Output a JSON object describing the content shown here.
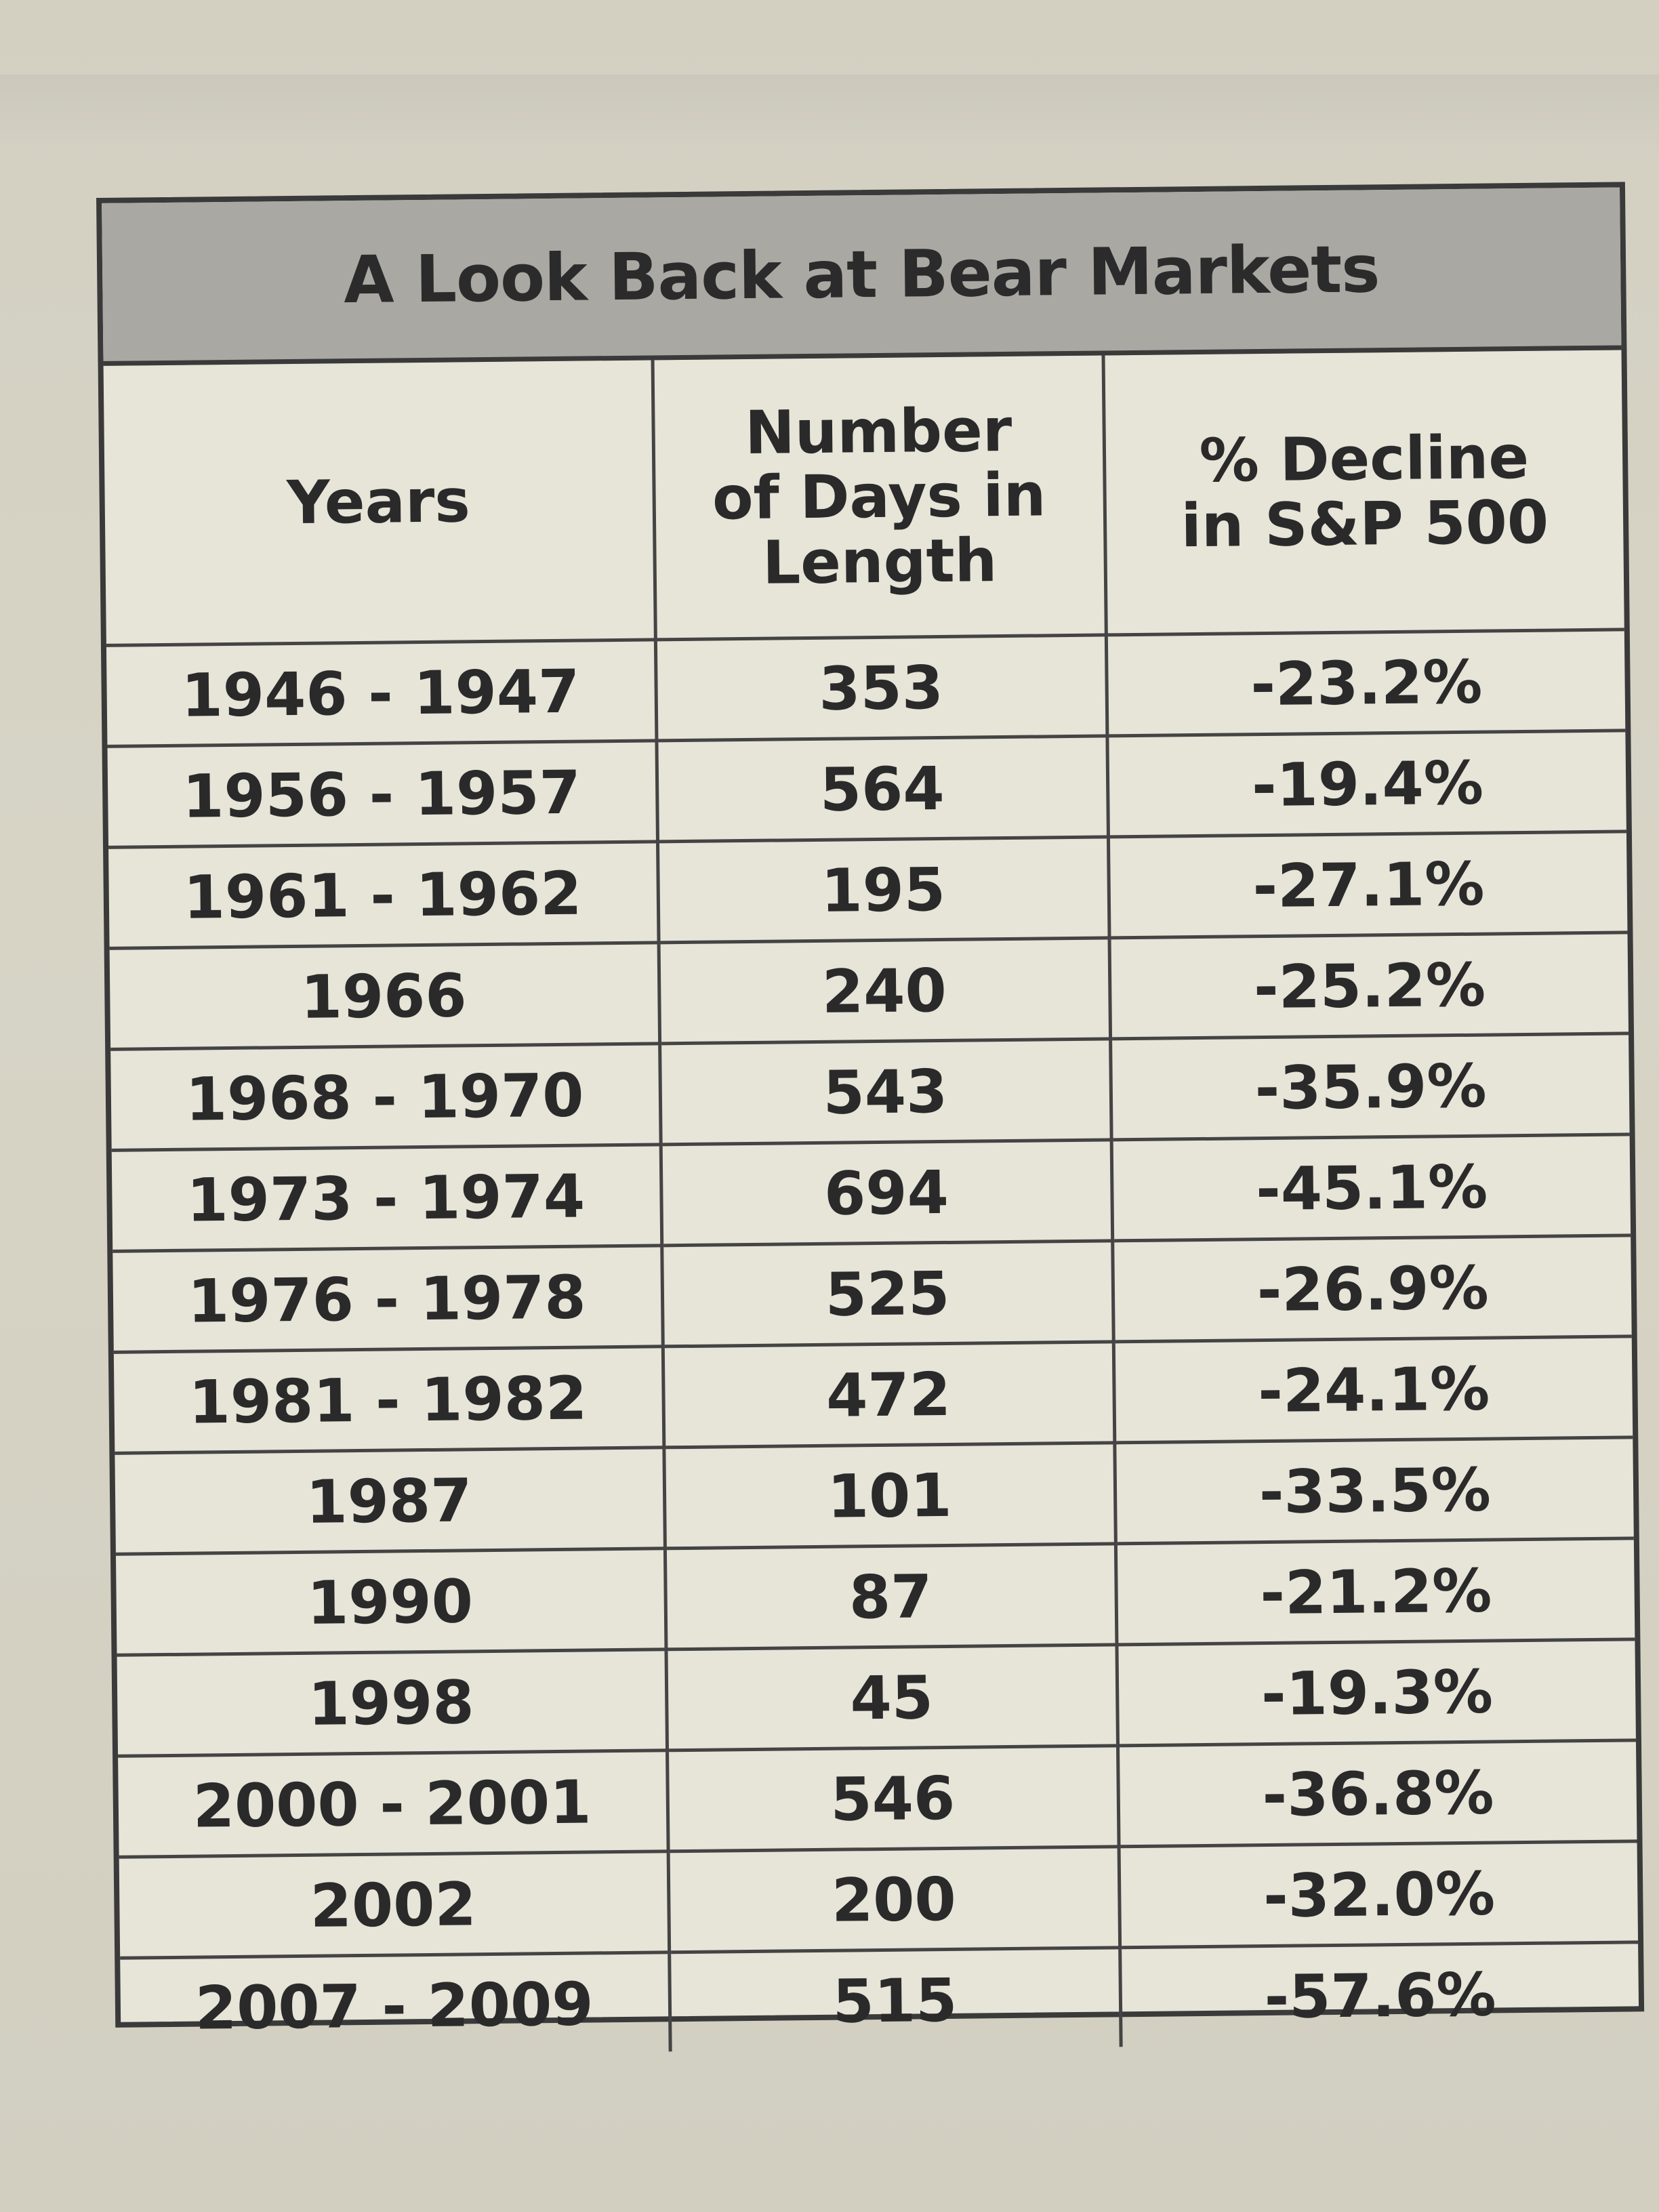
{
  "table": {
    "title": "A Look Back at Bear Markets",
    "headers": {
      "years": "Years",
      "days": [
        "Number",
        "of Days in",
        "Length"
      ],
      "decline": [
        "% Decline",
        "in S&P 500"
      ]
    },
    "rows": [
      {
        "years": "1946 - 1947",
        "days": "353",
        "decline": "-23.2%"
      },
      {
        "years": "1956 - 1957",
        "days": "564",
        "decline": "-19.4%"
      },
      {
        "years": "1961 - 1962",
        "days": "195",
        "decline": "-27.1%"
      },
      {
        "years": "1966",
        "days": "240",
        "decline": "-25.2%"
      },
      {
        "years": "1968 - 1970",
        "days": "543",
        "decline": "-35.9%"
      },
      {
        "years": "1973 - 1974",
        "days": "694",
        "decline": "-45.1%"
      },
      {
        "years": "1976 - 1978",
        "days": "525",
        "decline": "-26.9%"
      },
      {
        "years": "1981 - 1982",
        "days": "472",
        "decline": "-24.1%"
      },
      {
        "years": "1987",
        "days": "101",
        "decline": "-33.5%"
      },
      {
        "years": "1990",
        "days": "87",
        "decline": "-21.2%"
      },
      {
        "years": "1998",
        "days": "45",
        "decline": "-19.3%"
      },
      {
        "years": "2000 - 2001",
        "days": "546",
        "decline": "-36.8%"
      },
      {
        "years": "2002",
        "days": "200",
        "decline": "-32.0%"
      },
      {
        "years": "2007 - 2009",
        "days": "515",
        "decline": "-57.6%"
      }
    ]
  }
}
